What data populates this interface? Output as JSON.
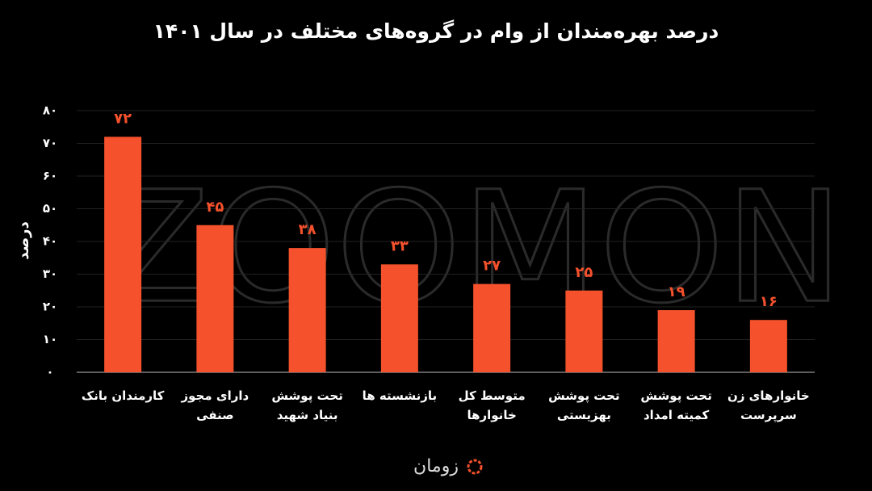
{
  "chart_data": {
    "type": "bar",
    "title": "درصد بهره‌مندان از وام در گروه‌های مختلف در سال ۱۴۰۱",
    "y_label": "درصد",
    "watermark": "ZOOMON",
    "brand": "زومان",
    "categories": [
      "کارمندان بانک",
      "دارای مجوز\nصنفی",
      "تحت پوشش\nبنیاد شهید",
      "بازنشسته ها",
      "متوسط کل\nخانوارها",
      "تحت پوشش\nبهزیستی",
      "تحت پوشش\nکمیته امداد",
      "خانوارهای زن\nسرپرست"
    ],
    "values": [
      72,
      45,
      38,
      33,
      27,
      25,
      19,
      16
    ],
    "value_labels": [
      "۷۲",
      "۴۵",
      "۳۸",
      "۳۳",
      "۲۷",
      "۲۵",
      "۱۹",
      "۱۶"
    ],
    "color": "#f4512c",
    "ylim": [
      0,
      80
    ],
    "yticks": [
      {
        "value": 0,
        "label": "۰"
      },
      {
        "value": 10,
        "label": "۱۰"
      },
      {
        "value": 20,
        "label": "۲۰"
      },
      {
        "value": 30,
        "label": "۳۰"
      },
      {
        "value": 40,
        "label": "۴۰"
      },
      {
        "value": 50,
        "label": "۵۰"
      },
      {
        "value": 60,
        "label": "۶۰"
      },
      {
        "value": 70,
        "label": "۷۰"
      },
      {
        "value": 80,
        "label": "۸۰"
      }
    ],
    "grid": true
  }
}
